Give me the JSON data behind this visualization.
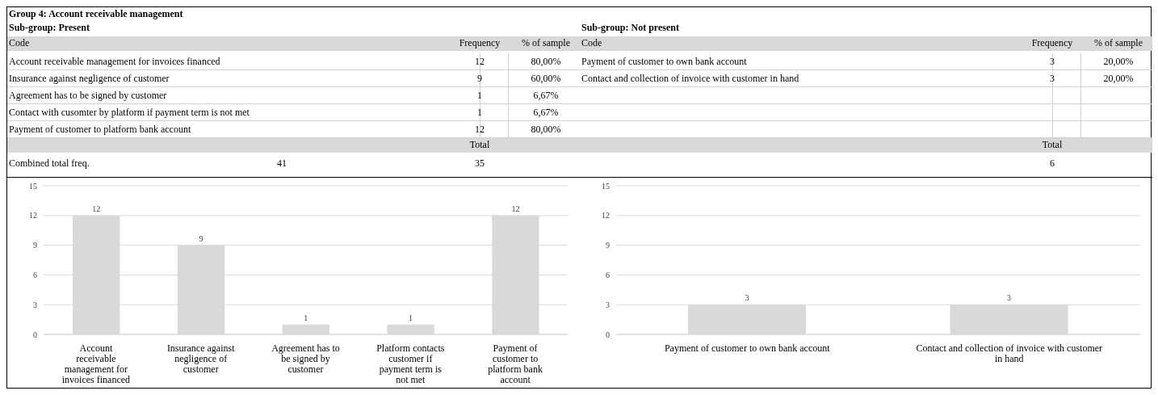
{
  "chart_data": [
    {
      "type": "bar",
      "title": "Group 4: Account receivable management",
      "subtitle": "Sub-group: Present",
      "categories": [
        "Account receivable management for invoices financed",
        "Insurance against negligence of customer",
        "Agreement has to be signed by customer",
        "Platform contacts customer if payment term is not met",
        "Payment of customer to platform bank account"
      ],
      "values": [
        12,
        9,
        1,
        1,
        12
      ],
      "color": "#d9d9d9",
      "ylim": [
        0,
        15
      ],
      "yticks": [
        0,
        3,
        6,
        9,
        12,
        15
      ],
      "grid": "y",
      "data_labels": true,
      "annotations": [
        "Code",
        "Frequency",
        "% of sample",
        "Account receivable management for invoices financed",
        "12",
        "80,00%",
        "Insurance against negligence of customer",
        "9",
        "60,00%",
        "Agreement has to be signed by customer",
        "1",
        "6,67%",
        "Contact with cusomter by platform if payment term is not met",
        "1",
        "6,67%",
        "Payment of customer to platform bank account",
        "12",
        "80,00%",
        "Total",
        "Combined total freq.",
        "41",
        "35"
      ]
    },
    {
      "type": "bar",
      "subtitle": "Sub-group: Not present",
      "categories": [
        "Payment of customer to own bank account",
        "Contact and collection of invoice with customer in hand"
      ],
      "values": [
        3,
        3
      ],
      "color": "#d9d9d9",
      "ylim": [
        0,
        15
      ],
      "yticks": [
        0,
        3,
        6,
        9,
        12,
        15
      ],
      "grid": "y",
      "data_labels": true,
      "annotations": [
        "Code",
        "Frequency",
        "% of sample",
        "Payment of customer to own bank account",
        "3",
        "20,00%",
        "Contact and collection of invoice with customer in hand",
        "3",
        "20,00%",
        "Total",
        "6"
      ]
    }
  ]
}
